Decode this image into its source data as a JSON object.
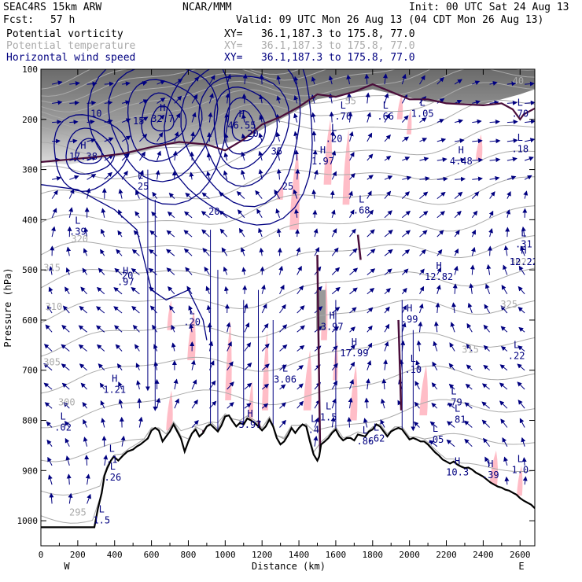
{
  "header": {
    "model": "SEAC4RS 15km ARW",
    "center": "NCAR/MMM",
    "init": "Init: 00 UTC Sat 24 Aug 13",
    "fcst_label": "Fcst:",
    "fcst_value": "57 h",
    "valid": "Valid: 09 UTC Mon 26 Aug 13 (04 CDT Mon 26 Aug 13)",
    "fields": [
      {
        "name": "Potential vorticity",
        "xy": "XY=   36.1,187.3 to 175.8, 77.0",
        "color": "#000000"
      },
      {
        "name": "Potential temperature",
        "xy": "XY=   36.1,187.3 to 175.8, 77.0",
        "color": "#aaaaaa"
      },
      {
        "name": "Horizontal wind speed",
        "xy": "XY=   36.1,187.3 to 175.8, 77.0",
        "color": "#000080"
      }
    ]
  },
  "chart_data": {
    "type": "cross-section",
    "xlabel": "Distance (km)",
    "ylabel": "Pressure (hPa)",
    "xlim": [
      0,
      2680
    ],
    "ylim": [
      1050,
      100
    ],
    "x_ticks": [
      0,
      200,
      400,
      600,
      800,
      1000,
      1200,
      1400,
      1600,
      1800,
      2000,
      2200,
      2400,
      2600
    ],
    "y_ticks": [
      100,
      200,
      300,
      400,
      500,
      600,
      700,
      800,
      900,
      1000
    ],
    "x_end_labels": {
      "left": "W",
      "right": "E"
    },
    "terrain_profile": [
      [
        0,
        1013
      ],
      [
        30,
        1013
      ],
      [
        130,
        1013
      ],
      [
        290,
        1013
      ],
      [
        310,
        975
      ],
      [
        330,
        945
      ],
      [
        345,
        910
      ],
      [
        360,
        895
      ],
      [
        380,
        880
      ],
      [
        395,
        872
      ],
      [
        420,
        880
      ],
      [
        445,
        870
      ],
      [
        470,
        862
      ],
      [
        500,
        858
      ],
      [
        520,
        852
      ],
      [
        540,
        848
      ],
      [
        560,
        842
      ],
      [
        580,
        836
      ],
      [
        600,
        820
      ],
      [
        620,
        815
      ],
      [
        640,
        820
      ],
      [
        660,
        842
      ],
      [
        680,
        832
      ],
      [
        700,
        822
      ],
      [
        720,
        808
      ],
      [
        740,
        822
      ],
      [
        760,
        836
      ],
      [
        780,
        862
      ],
      [
        800,
        842
      ],
      [
        820,
        826
      ],
      [
        840,
        818
      ],
      [
        860,
        832
      ],
      [
        880,
        825
      ],
      [
        900,
        812
      ],
      [
        920,
        808
      ],
      [
        940,
        815
      ],
      [
        960,
        822
      ],
      [
        980,
        810
      ],
      [
        1000,
        792
      ],
      [
        1020,
        790
      ],
      [
        1040,
        802
      ],
      [
        1060,
        812
      ],
      [
        1080,
        805
      ],
      [
        1100,
        808
      ],
      [
        1120,
        796
      ],
      [
        1140,
        800
      ],
      [
        1160,
        805
      ],
      [
        1180,
        812
      ],
      [
        1200,
        820
      ],
      [
        1220,
        812
      ],
      [
        1240,
        798
      ],
      [
        1260,
        812
      ],
      [
        1280,
        835
      ],
      [
        1300,
        848
      ],
      [
        1320,
        842
      ],
      [
        1340,
        830
      ],
      [
        1360,
        815
      ],
      [
        1380,
        825
      ],
      [
        1400,
        815
      ],
      [
        1420,
        808
      ],
      [
        1440,
        812
      ],
      [
        1460,
        842
      ],
      [
        1480,
        868
      ],
      [
        1500,
        880
      ],
      [
        1510,
        872
      ],
      [
        1520,
        848
      ],
      [
        1540,
        842
      ],
      [
        1560,
        835
      ],
      [
        1580,
        825
      ],
      [
        1600,
        818
      ],
      [
        1620,
        832
      ],
      [
        1640,
        840
      ],
      [
        1660,
        835
      ],
      [
        1680,
        835
      ],
      [
        1700,
        840
      ],
      [
        1720,
        828
      ],
      [
        1740,
        830
      ],
      [
        1760,
        832
      ],
      [
        1780,
        822
      ],
      [
        1800,
        818
      ],
      [
        1820,
        808
      ],
      [
        1840,
        812
      ],
      [
        1860,
        822
      ],
      [
        1880,
        832
      ],
      [
        1900,
        822
      ],
      [
        1920,
        818
      ],
      [
        1940,
        815
      ],
      [
        1960,
        818
      ],
      [
        1980,
        828
      ],
      [
        2000,
        838
      ],
      [
        2020,
        835
      ],
      [
        2040,
        838
      ],
      [
        2060,
        842
      ],
      [
        2080,
        842
      ],
      [
        2100,
        848
      ],
      [
        2120,
        856
      ],
      [
        2140,
        864
      ],
      [
        2160,
        870
      ],
      [
        2180,
        878
      ],
      [
        2200,
        882
      ],
      [
        2220,
        886
      ],
      [
        2240,
        882
      ],
      [
        2260,
        888
      ],
      [
        2280,
        892
      ],
      [
        2300,
        895
      ],
      [
        2320,
        894
      ],
      [
        2340,
        898
      ],
      [
        2360,
        904
      ],
      [
        2380,
        908
      ],
      [
        2400,
        912
      ],
      [
        2420,
        918
      ],
      [
        2440,
        924
      ],
      [
        2460,
        928
      ],
      [
        2480,
        932
      ],
      [
        2500,
        934
      ],
      [
        2520,
        938
      ],
      [
        2540,
        940
      ],
      [
        2560,
        944
      ],
      [
        2580,
        948
      ],
      [
        2600,
        955
      ],
      [
        2620,
        960
      ],
      [
        2640,
        964
      ],
      [
        2660,
        968
      ],
      [
        2680,
        975
      ]
    ],
    "theta_contour_labels": [
      {
        "text": "320",
        "x": 210,
        "p": 445
      },
      {
        "text": "315",
        "x": 60,
        "p": 502
      },
      {
        "text": "310",
        "x": 70,
        "p": 580
      },
      {
        "text": "305",
        "x": 60,
        "p": 690
      },
      {
        "text": "300",
        "x": 140,
        "p": 770
      },
      {
        "text": "295",
        "x": 200,
        "p": 990
      },
      {
        "text": "325",
        "x": 2540,
        "p": 575
      },
      {
        "text": "315",
        "x": 2330,
        "p": 665
      },
      {
        "text": "55",
        "x": 1680,
        "p": 170
      },
      {
        "text": "40",
        "x": 2590,
        "p": 130
      },
      {
        "text": "302",
        "x": 2590,
        "p": 490
      }
    ],
    "wind_speed_contour_labels": [
      {
        "text": "35",
        "x": 1280,
        "p": 270
      },
      {
        "text": "25",
        "x": 1340,
        "p": 340
      },
      {
        "text": "20",
        "x": 1150,
        "p": 235
      },
      {
        "text": "20",
        "x": 940,
        "p": 390
      },
      {
        "text": "20",
        "x": 470,
        "p": 518
      },
      {
        "text": "15",
        "x": 530,
        "p": 210
      },
      {
        "text": "10",
        "x": 300,
        "p": 195
      }
    ],
    "extrema_labels": [
      {
        "type": "H",
        "value": "32.7",
        "x": 660,
        "p": 205
      },
      {
        "type": "H",
        "value": "46.55",
        "x": 1090,
        "p": 218
      },
      {
        "type": "H",
        "value": "17.38",
        "x": 230,
        "p": 280
      },
      {
        "type": "L",
        "value": ".25",
        "x": 540,
        "p": 340
      },
      {
        "type": "L",
        "value": ".39",
        "x": 200,
        "p": 430
      },
      {
        "type": "L",
        "value": ".20",
        "x": 820,
        "p": 610
      },
      {
        "type": "H",
        "value": ".97",
        "x": 460,
        "p": 530
      },
      {
        "type": "H",
        "value": "3.97",
        "x": 1580,
        "p": 620
      },
      {
        "type": "H",
        "value": "17.99",
        "x": 1700,
        "p": 672
      },
      {
        "type": "L",
        "value": "3.06",
        "x": 1325,
        "p": 725
      },
      {
        "type": "H",
        "value": "1.21",
        "x": 400,
        "p": 745
      },
      {
        "type": "H",
        "value": "3.97",
        "x": 1135,
        "p": 815
      },
      {
        "type": "L",
        "value": ".02",
        "x": 120,
        "p": 820
      },
      {
        "type": "L",
        "value": "1.5",
        "x": 1560,
        "p": 800
      },
      {
        "type": "L",
        "value": ".1",
        "x": 385,
        "p": 885
      },
      {
        "type": "L",
        "value": ".26",
        "x": 390,
        "p": 920
      },
      {
        "type": "L",
        "value": "1.5",
        "x": 330,
        "p": 1005
      },
      {
        "type": "L",
        "value": ".76",
        "x": 1640,
        "p": 200
      },
      {
        "type": "L",
        "value": ".20",
        "x": 1590,
        "p": 245
      },
      {
        "type": "H",
        "value": "1.97",
        "x": 1530,
        "p": 290
      },
      {
        "type": "L",
        "value": ".66",
        "x": 1870,
        "p": 200
      },
      {
        "type": "L",
        "value": "1.05",
        "x": 2070,
        "p": 195
      },
      {
        "type": "L",
        "value": ".70",
        "x": 2600,
        "p": 195
      },
      {
        "type": "L",
        "value": ".18",
        "x": 2600,
        "p": 265
      },
      {
        "type": "H",
        "value": "4.48",
        "x": 2280,
        "p": 290
      },
      {
        "type": "L",
        "value": ".68",
        "x": 1740,
        "p": 388
      },
      {
        "type": "L",
        "value": ".31",
        "x": 2620,
        "p": 455
      },
      {
        "type": "H",
        "value": "12.22",
        "x": 2620,
        "p": 490
      },
      {
        "type": "H",
        "value": "12.82",
        "x": 2160,
        "p": 520
      },
      {
        "type": "H",
        "value": ".99",
        "x": 2000,
        "p": 605
      },
      {
        "type": "L",
        "value": ".10",
        "x": 2020,
        "p": 705
      },
      {
        "type": "L",
        "value": ".22",
        "x": 2580,
        "p": 678
      },
      {
        "type": "L",
        "value": ".79",
        "x": 2240,
        "p": 770
      },
      {
        "type": "L",
        "value": ".81",
        "x": 2260,
        "p": 805
      },
      {
        "type": "L",
        "value": ".86",
        "x": 1760,
        "p": 848
      },
      {
        "type": "L",
        "value": ".62",
        "x": 1820,
        "p": 842
      },
      {
        "type": "L",
        "value": ".05",
        "x": 2140,
        "p": 845
      },
      {
        "type": "L",
        "value": ".4",
        "x": 1480,
        "p": 825
      },
      {
        "type": "H",
        "value": "10.3",
        "x": 2260,
        "p": 910
      },
      {
        "type": "H",
        "value": ".39",
        "x": 2440,
        "p": 915
      },
      {
        "type": "L",
        "value": "1.0",
        "x": 2600,
        "p": 905
      }
    ],
    "legend": "header-top-left",
    "grid": false
  },
  "colors": {
    "pv_contour": "#4a0d3a",
    "theta_contour": "#aaaaaa",
    "wind_contour": "#000080",
    "pv_shade_low": "#ffb6c1",
    "pv_shade_high": "#404040",
    "vectors": "#000080",
    "terrain": "#000000"
  }
}
